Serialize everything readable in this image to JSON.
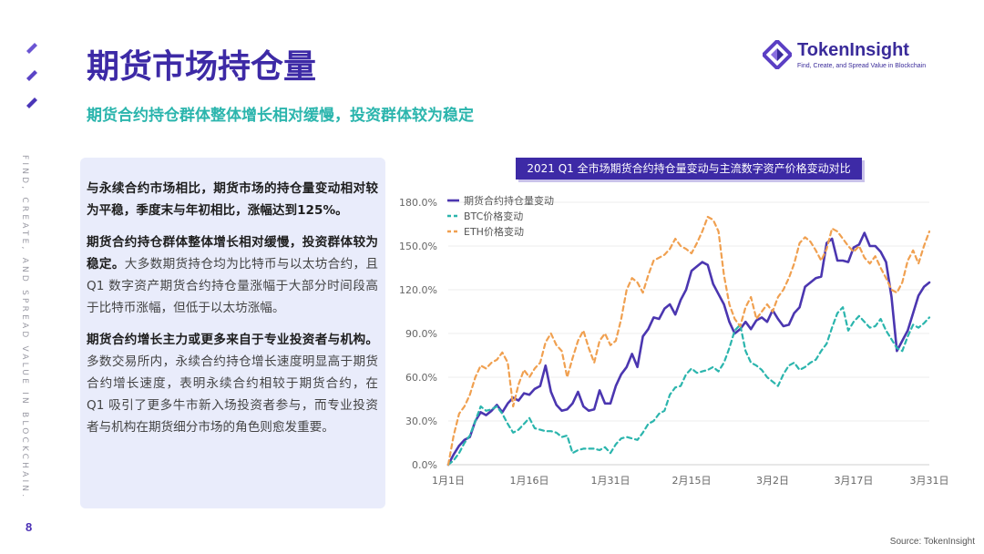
{
  "page": {
    "title": "期货市场持仓量",
    "subtitle": "期货合约持仓群体整体增长相对缓慢，投资群体较为稳定",
    "side_text": "FIND, CREATE, AND SPREAD VALUE IN BLOCKCHAIN.",
    "page_number": "8",
    "source": "Source: TokenInsight",
    "accent_color": "#3d2aa6",
    "teal_color": "#2bb5ad"
  },
  "logo": {
    "name": "TokenInsight",
    "tagline": "Find, Create, and Spread Value in Blockchain",
    "icon": "tokeninsight-logo-icon"
  },
  "text_box": {
    "p1": "与永续合约市场相比，期货市场的持仓量变动相对较为平稳，季度末与年初相比，涨幅达到125%。",
    "p2_bold": "期货合约持仓群体整体增长相对缓慢，投资群体较为稳定。",
    "p2_rest": "大多数期货持仓均为比特币与以太坊合约，且 Q1 数字资产期货合约持仓量涨幅于大部分时间段高于比特币涨幅，但低于以太坊涨幅。",
    "p3_bold": "期货合约增长主力或更多来自于专业投资者与机构。",
    "p3_rest": "多数交易所内，永续合约持仓增长速度明显高于期货合约增长速度，表明永续合约相较于期货合约，在 Q1 吸引了更多牛市新入场投资者参与，而专业投资者与机构在期货细分市场的角色则愈发重要。"
  },
  "chart_data": {
    "type": "line",
    "title": "2021 Q1 全市场期货合约持仓量变动与主流数字资产价格变动对比",
    "x_ticks": [
      "1月1日",
      "1月16日",
      "1月31日",
      "2月15日",
      "3月2日",
      "3月17日",
      "3月31日"
    ],
    "x_tick_index": [
      0,
      15,
      30,
      45,
      60,
      75,
      89
    ],
    "y_ticks": [
      "0.0%",
      "30.0%",
      "60.0%",
      "90.0%",
      "120.0%",
      "150.0%",
      "180.0%"
    ],
    "ylim": [
      0,
      180
    ],
    "grid": true,
    "legend_position": "top-left",
    "series": [
      {
        "name": "期货合约持仓量变动",
        "color": "#4b36b0",
        "style": "solid",
        "values": [
          0,
          7,
          13,
          17,
          19,
          30,
          36,
          34,
          37,
          41,
          36,
          42,
          46,
          44,
          49,
          48,
          52,
          54,
          68,
          50,
          41,
          37,
          38,
          42,
          50,
          40,
          37,
          38,
          51,
          42,
          42,
          54,
          62,
          67,
          76,
          67,
          88,
          93,
          101,
          100,
          107,
          110,
          103,
          113,
          120,
          133,
          136,
          139,
          137,
          124,
          117,
          110,
          98,
          90,
          93,
          98,
          93,
          99,
          101,
          98,
          106,
          100,
          95,
          96,
          104,
          108,
          122,
          125,
          128,
          129,
          152,
          155,
          140,
          140,
          139,
          149,
          151,
          159,
          150,
          150,
          146,
          139,
          115,
          78,
          85,
          92,
          104,
          116,
          122,
          125
        ]
      },
      {
        "name": "BTC价格变动",
        "color": "#2bb5ad",
        "style": "dashed",
        "values": [
          0,
          3,
          8,
          15,
          20,
          30,
          40,
          37,
          38,
          40,
          35,
          28,
          22,
          24,
          28,
          32,
          25,
          24,
          23,
          23,
          22,
          19,
          20,
          8,
          10,
          11,
          11,
          11,
          10,
          12,
          8,
          14,
          18,
          19,
          18,
          17,
          22,
          28,
          30,
          35,
          37,
          48,
          53,
          54,
          62,
          66,
          63,
          64,
          65,
          67,
          64,
          70,
          80,
          92,
          96,
          78,
          70,
          68,
          65,
          60,
          57,
          54,
          62,
          68,
          70,
          65,
          67,
          70,
          72,
          78,
          83,
          94,
          104,
          108,
          92,
          98,
          102,
          98,
          94,
          95,
          100,
          92,
          86,
          80,
          78,
          88,
          96,
          94,
          97,
          101
        ]
      },
      {
        "name": "ETH价格变动",
        "color": "#f0a050",
        "style": "dashed",
        "values": [
          0,
          20,
          35,
          40,
          48,
          60,
          68,
          66,
          70,
          72,
          77,
          70,
          40,
          55,
          65,
          60,
          66,
          70,
          84,
          90,
          82,
          78,
          60,
          73,
          85,
          92,
          80,
          70,
          85,
          90,
          82,
          85,
          100,
          120,
          128,
          125,
          118,
          130,
          140,
          142,
          144,
          148,
          155,
          150,
          148,
          145,
          152,
          160,
          170,
          168,
          160,
          130,
          110,
          100,
          95,
          108,
          115,
          100,
          105,
          110,
          105,
          115,
          120,
          128,
          138,
          152,
          156,
          153,
          147,
          140,
          148,
          162,
          160,
          155,
          150,
          146,
          150,
          142,
          138,
          143,
          135,
          128,
          120,
          118,
          125,
          140,
          147,
          138,
          150,
          160
        ]
      }
    ]
  }
}
